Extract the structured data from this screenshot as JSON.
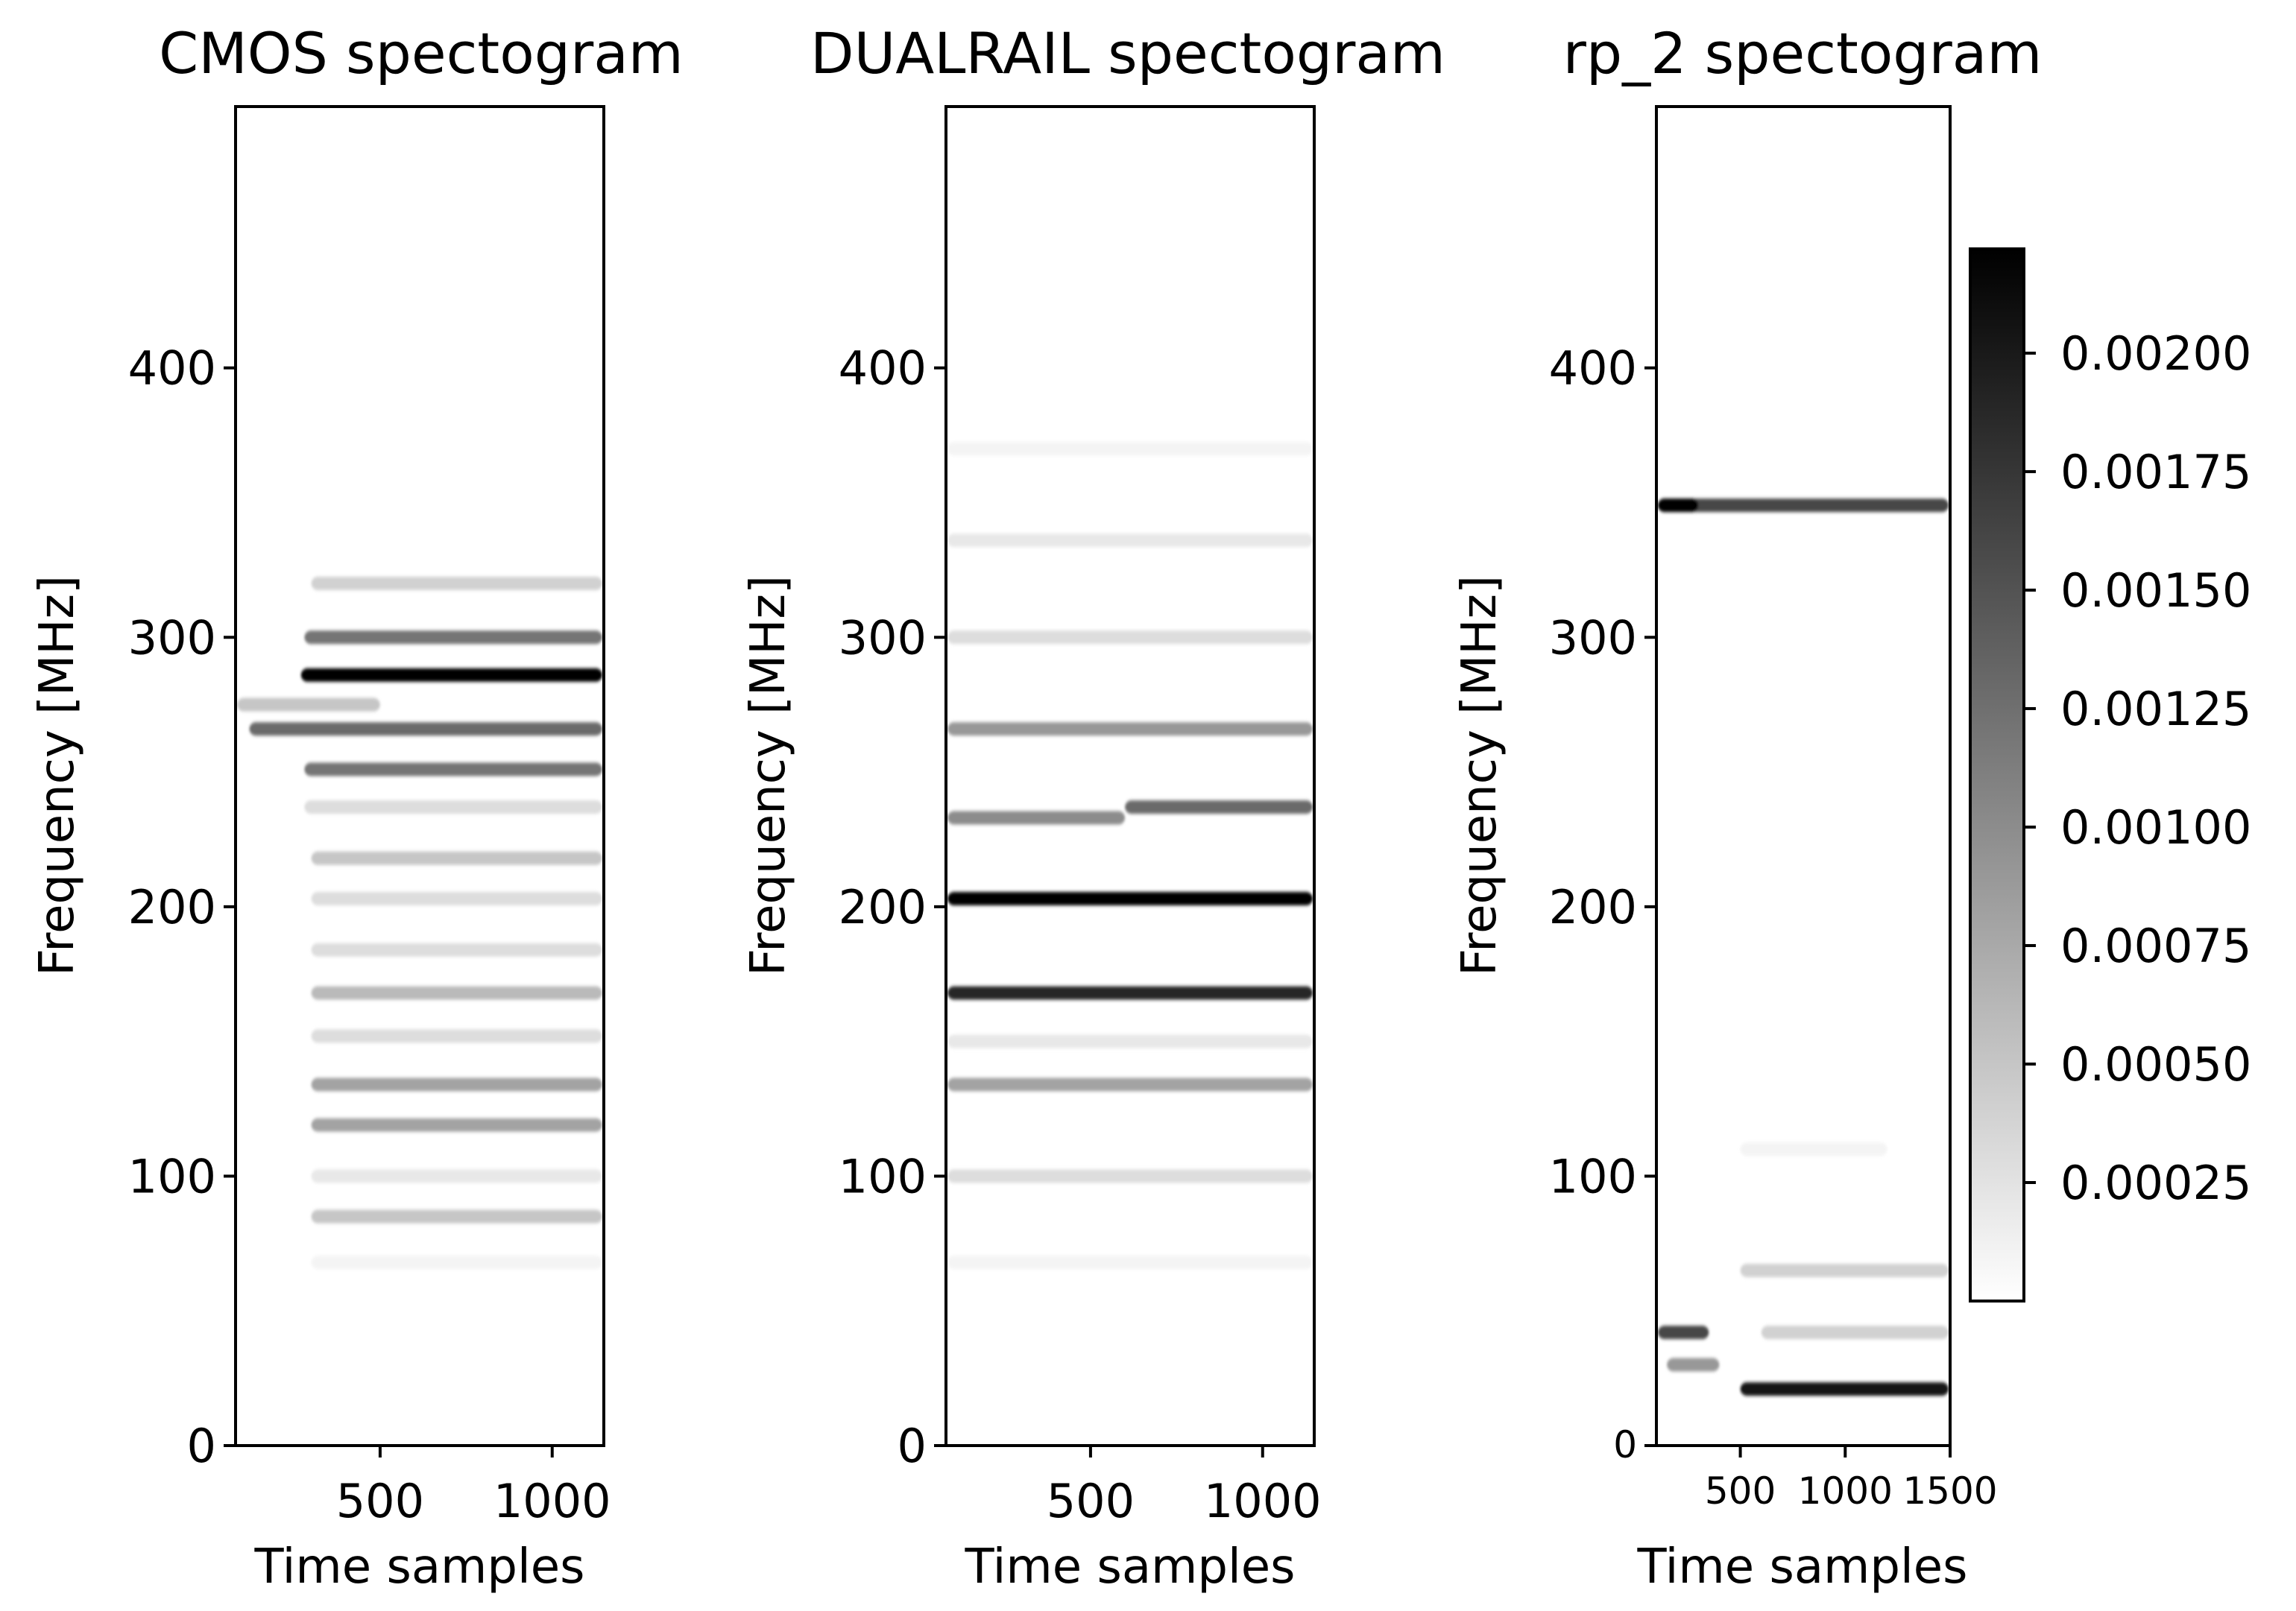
{
  "chart_data": [
    {
      "type": "heatmap",
      "title": "CMOS spectogram",
      "xlabel": "Time samples",
      "ylabel": "Frequency [MHz]",
      "xlim": [
        80,
        1150
      ],
      "ylim": [
        0,
        497
      ],
      "x_ticks": [
        500,
        1000
      ],
      "x_tick_labels": [
        "500",
        "1000"
      ],
      "y_ticks": [
        0,
        100,
        200,
        300,
        400
      ],
      "y_tick_labels": [
        "0",
        "100",
        "200",
        "300",
        "400"
      ],
      "colormap": "greys",
      "bands": [
        {
          "freq": 286,
          "x_start": 270,
          "x_end": 1150,
          "peak": 0.0022
        },
        {
          "freq": 300,
          "x_start": 280,
          "x_end": 1150,
          "peak": 0.0012
        },
        {
          "freq": 266,
          "x_start": 120,
          "x_end": 1150,
          "peak": 0.0013
        },
        {
          "freq": 251,
          "x_start": 280,
          "x_end": 1150,
          "peak": 0.0012
        },
        {
          "freq": 320,
          "x_start": 300,
          "x_end": 1150,
          "peak": 0.0004
        },
        {
          "freq": 275,
          "x_start": 80,
          "x_end": 500,
          "peak": 0.0005
        },
        {
          "freq": 237,
          "x_start": 280,
          "x_end": 1150,
          "peak": 0.0003
        },
        {
          "freq": 218,
          "x_start": 300,
          "x_end": 1150,
          "peak": 0.0005
        },
        {
          "freq": 203,
          "x_start": 300,
          "x_end": 1150,
          "peak": 0.0003
        },
        {
          "freq": 184,
          "x_start": 300,
          "x_end": 1150,
          "peak": 0.0003
        },
        {
          "freq": 168,
          "x_start": 300,
          "x_end": 1150,
          "peak": 0.0006
        },
        {
          "freq": 152,
          "x_start": 300,
          "x_end": 1150,
          "peak": 0.0003
        },
        {
          "freq": 134,
          "x_start": 300,
          "x_end": 1150,
          "peak": 0.0008
        },
        {
          "freq": 119,
          "x_start": 300,
          "x_end": 1150,
          "peak": 0.0008
        },
        {
          "freq": 100,
          "x_start": 300,
          "x_end": 1150,
          "peak": 0.0002
        },
        {
          "freq": 85,
          "x_start": 300,
          "x_end": 1150,
          "peak": 0.0005
        },
        {
          "freq": 68,
          "x_start": 300,
          "x_end": 1150,
          "peak": 0.0001
        }
      ]
    },
    {
      "type": "heatmap",
      "title": "DUALRAIL spectogram",
      "xlabel": "Time samples",
      "ylabel": "Frequency [MHz]",
      "xlim": [
        80,
        1150
      ],
      "ylim": [
        0,
        497
      ],
      "x_ticks": [
        500,
        1000
      ],
      "x_tick_labels": [
        "500",
        "1000"
      ],
      "y_ticks": [
        0,
        100,
        200,
        300,
        400
      ],
      "y_tick_labels": [
        "0",
        "100",
        "200",
        "300",
        "400"
      ],
      "colormap": "greys",
      "bands": [
        {
          "freq": 203,
          "x_start": 80,
          "x_end": 1150,
          "peak": 0.0022
        },
        {
          "freq": 168,
          "x_start": 80,
          "x_end": 1150,
          "peak": 0.0019
        },
        {
          "freq": 237,
          "x_start": 600,
          "x_end": 1150,
          "peak": 0.0013
        },
        {
          "freq": 233,
          "x_start": 80,
          "x_end": 600,
          "peak": 0.001
        },
        {
          "freq": 266,
          "x_start": 80,
          "x_end": 1150,
          "peak": 0.0009
        },
        {
          "freq": 134,
          "x_start": 80,
          "x_end": 1150,
          "peak": 0.0008
        },
        {
          "freq": 300,
          "x_start": 80,
          "x_end": 1150,
          "peak": 0.0003
        },
        {
          "freq": 100,
          "x_start": 80,
          "x_end": 1150,
          "peak": 0.0003
        },
        {
          "freq": 336,
          "x_start": 80,
          "x_end": 1150,
          "peak": 0.0002
        },
        {
          "freq": 370,
          "x_start": 80,
          "x_end": 1150,
          "peak": 0.0001
        },
        {
          "freq": 68,
          "x_start": 80,
          "x_end": 1150,
          "peak": 0.0001
        },
        {
          "freq": 150,
          "x_start": 80,
          "x_end": 1150,
          "peak": 0.0002
        }
      ]
    },
    {
      "type": "heatmap",
      "title": "rp_2 spectogram",
      "xlabel": "Time samples",
      "ylabel": "Frequency [MHz]",
      "xlim": [
        100,
        1500
      ],
      "ylim": [
        0,
        497
      ],
      "x_ticks": [
        500,
        1000,
        1500
      ],
      "x_tick_labels": [
        "500",
        "1000",
        "1500"
      ],
      "y_ticks": [
        0,
        100,
        200,
        300,
        400
      ],
      "y_tick_labels": [
        "0",
        "100",
        "200",
        "300",
        "400"
      ],
      "colormap": "greys",
      "bands": [
        {
          "freq": 349,
          "x_start": 100,
          "x_end": 1500,
          "peak": 0.0016
        },
        {
          "freq": 349,
          "x_start": 100,
          "x_end": 300,
          "peak": 0.0022
        },
        {
          "freq": 21,
          "x_start": 500,
          "x_end": 1500,
          "peak": 0.002
        },
        {
          "freq": 42,
          "x_start": 100,
          "x_end": 350,
          "peak": 0.0016
        },
        {
          "freq": 30,
          "x_start": 150,
          "x_end": 400,
          "peak": 0.0009
        },
        {
          "freq": 65,
          "x_start": 500,
          "x_end": 1500,
          "peak": 0.0004
        },
        {
          "freq": 42,
          "x_start": 600,
          "x_end": 1500,
          "peak": 0.0004
        },
        {
          "freq": 110,
          "x_start": 500,
          "x_end": 1200,
          "peak": 0.0001
        }
      ],
      "colorbar": {
        "ticks": [
          0.00025,
          0.0005,
          0.00075,
          0.001,
          0.00125,
          0.0015,
          0.00175,
          0.002
        ],
        "tick_labels": [
          "0.00025",
          "0.00050",
          "0.00075",
          "0.00100",
          "0.00125",
          "0.00150",
          "0.00175",
          "0.00200"
        ],
        "range": [
          0,
          0.00222
        ]
      }
    }
  ]
}
